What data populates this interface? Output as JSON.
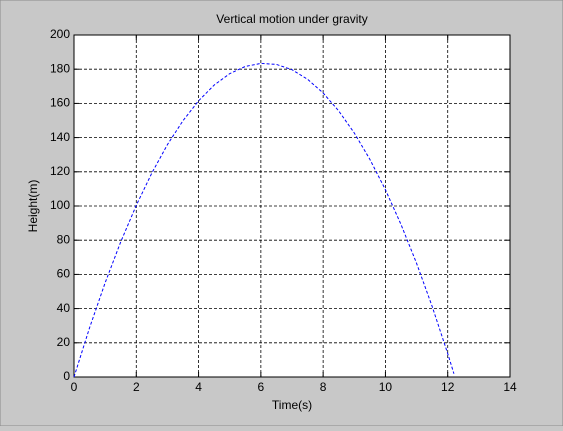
{
  "chart_data": {
    "type": "line",
    "title": "Vertical motion under gravity",
    "x_label": "Time(s)",
    "y_label": "Height(m)",
    "x": [
      0,
      0.5,
      1,
      1.5,
      2,
      2.5,
      3,
      3.5,
      4,
      4.5,
      5,
      5.5,
      6,
      6.5,
      7,
      7.5,
      8,
      8.5,
      9,
      9.5,
      10,
      10.5,
      11,
      11.5,
      12,
      12.2
    ],
    "values": [
      0,
      28.8,
      55.1,
      79.0,
      100.4,
      119.3,
      135.9,
      149.9,
      161.5,
      170.7,
      177.4,
      181.6,
      183.4,
      182.8,
      179.7,
      174.1,
      166.1,
      155.6,
      142.7,
      127.3,
      109.5,
      89.2,
      66.5,
      41.3,
      13.7,
      1.9
    ],
    "color": "#0000ff",
    "line_style": "dashed",
    "xlim": [
      0,
      14
    ],
    "xticks": [
      0,
      2,
      4,
      6,
      8,
      10,
      12,
      14
    ],
    "ylim": [
      0,
      200
    ],
    "yticks": [
      0,
      20,
      40,
      60,
      80,
      100,
      120,
      140,
      160,
      180,
      200
    ],
    "grid": true
  }
}
